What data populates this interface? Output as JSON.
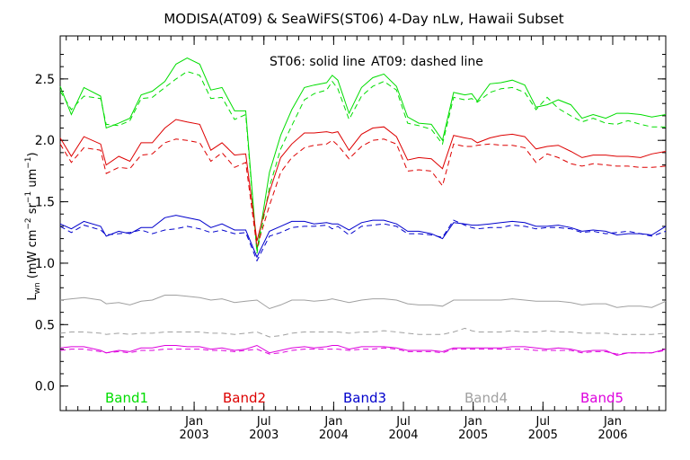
{
  "chart_data": {
    "type": "line",
    "title": "MODISA(AT09) & SeaWiFS(ST06) 4-Day nLw, Hawaii Subset",
    "annotation_solid": "ST06: solid line",
    "annotation_dashed": "AT09: dashed line",
    "ylabel": "L_wn (mW cm^-2 sr^-1 um^-1)",
    "ylabel_parts": {
      "main": "L",
      "sub": "wn",
      "units_a": " (mW cm",
      "exp_a": "−2",
      "units_b": " sr",
      "exp_b": "−1",
      "units_c": " um",
      "exp_c": "−1",
      "units_d": ")"
    },
    "xlim": [
      2002.04,
      2006.38
    ],
    "ylim": [
      -0.2,
      2.85
    ],
    "yticks": [
      "0.0",
      "0.5",
      "1.0",
      "1.5",
      "2.0",
      "2.5"
    ],
    "ytick_values": [
      0.0,
      0.5,
      1.0,
      1.5,
      2.0,
      2.5
    ],
    "xticks": [
      {
        "value": 2003.0,
        "month": "Jan",
        "year": "2003"
      },
      {
        "value": 2003.5,
        "month": "Jul",
        "year": "2003"
      },
      {
        "value": 2004.0,
        "month": "Jan",
        "year": "2004"
      },
      {
        "value": 2004.5,
        "month": "Jul",
        "year": "2004"
      },
      {
        "value": 2005.0,
        "month": "Jan",
        "year": "2005"
      },
      {
        "value": 2005.5,
        "month": "Jul",
        "year": "2005"
      },
      {
        "value": 2006.0,
        "month": "Jan",
        "year": "2006"
      }
    ],
    "x": [
      2002.04,
      2002.12,
      2002.21,
      2002.33,
      2002.37,
      2002.46,
      2002.54,
      2002.62,
      2002.7,
      2002.79,
      2002.87,
      2002.95,
      2003.04,
      2003.12,
      2003.2,
      2003.29,
      2003.37,
      2003.45,
      2003.54,
      2003.62,
      2003.7,
      2003.79,
      2003.86,
      2003.95,
      2003.99,
      2004.03,
      2004.11,
      2004.2,
      2004.28,
      2004.36,
      2004.45,
      2004.53,
      2004.61,
      2004.7,
      2004.78,
      2004.86,
      2004.94,
      2004.99,
      2005.03,
      2005.12,
      2005.2,
      2005.28,
      2005.37,
      2005.45,
      2005.53,
      2005.61,
      2005.7,
      2005.78,
      2005.86,
      2005.95,
      2006.03,
      2006.11,
      2006.2,
      2006.28,
      2006.38
    ],
    "legend": [
      "Band1",
      "Band2",
      "Band3",
      "Band4",
      "Band5"
    ],
    "series": [
      {
        "name": "Band1",
        "color": "#00dd00",
        "solid": [
          2.44,
          2.21,
          2.43,
          2.36,
          2.1,
          2.14,
          2.18,
          2.37,
          2.4,
          2.48,
          2.62,
          2.67,
          2.62,
          2.41,
          2.43,
          2.24,
          2.24,
          1.1,
          1.74,
          2.04,
          2.25,
          2.43,
          2.45,
          2.47,
          2.53,
          2.49,
          2.22,
          2.43,
          2.51,
          2.54,
          2.44,
          2.19,
          2.14,
          2.13,
          2.0,
          2.39,
          2.37,
          2.38,
          2.32,
          2.46,
          2.47,
          2.49,
          2.45,
          2.27,
          2.29,
          2.33,
          2.29,
          2.18,
          2.21,
          2.18,
          2.22,
          2.22,
          2.21,
          2.19,
          2.21
        ],
        "dashed": [
          2.4,
          2.25,
          2.36,
          2.34,
          2.13,
          2.12,
          2.16,
          2.34,
          2.35,
          2.43,
          2.5,
          2.56,
          2.53,
          2.34,
          2.35,
          2.17,
          2.21,
          1.08,
          1.62,
          1.93,
          2.12,
          2.33,
          2.38,
          2.41,
          2.48,
          2.42,
          2.17,
          2.36,
          2.44,
          2.48,
          2.41,
          2.14,
          2.12,
          2.09,
          1.97,
          2.35,
          2.33,
          2.34,
          2.31,
          2.39,
          2.42,
          2.43,
          2.39,
          2.25,
          2.35,
          2.26,
          2.2,
          2.15,
          2.18,
          2.14,
          2.13,
          2.16,
          2.13,
          2.11,
          2.11
        ]
      },
      {
        "name": "Band2",
        "color": "#dd0000",
        "solid": [
          2.02,
          1.87,
          2.03,
          1.97,
          1.8,
          1.87,
          1.83,
          1.98,
          1.98,
          2.1,
          2.17,
          2.15,
          2.13,
          1.92,
          1.98,
          1.88,
          1.89,
          1.18,
          1.58,
          1.86,
          1.97,
          2.06,
          2.06,
          2.07,
          2.06,
          2.07,
          1.92,
          2.05,
          2.1,
          2.11,
          2.03,
          1.84,
          1.86,
          1.85,
          1.77,
          2.04,
          2.02,
          2.01,
          1.98,
          2.02,
          2.04,
          2.05,
          2.03,
          1.93,
          1.95,
          1.96,
          1.91,
          1.86,
          1.88,
          1.88,
          1.87,
          1.87,
          1.86,
          1.89,
          1.91
        ],
        "dashed": [
          1.97,
          1.82,
          1.94,
          1.92,
          1.73,
          1.78,
          1.77,
          1.88,
          1.89,
          1.98,
          2.01,
          2.0,
          1.98,
          1.83,
          1.9,
          1.78,
          1.82,
          1.13,
          1.47,
          1.74,
          1.86,
          1.94,
          1.96,
          1.97,
          2.0,
          1.96,
          1.85,
          1.95,
          2.0,
          2.01,
          1.97,
          1.75,
          1.76,
          1.75,
          1.63,
          1.97,
          1.95,
          1.95,
          1.96,
          1.97,
          1.96,
          1.96,
          1.94,
          1.82,
          1.89,
          1.86,
          1.81,
          1.79,
          1.81,
          1.8,
          1.79,
          1.79,
          1.78,
          1.78,
          1.79
        ]
      },
      {
        "name": "Band3",
        "color": "#0000cc",
        "solid": [
          1.32,
          1.28,
          1.34,
          1.3,
          1.22,
          1.26,
          1.24,
          1.29,
          1.29,
          1.37,
          1.39,
          1.37,
          1.35,
          1.29,
          1.32,
          1.27,
          1.27,
          1.05,
          1.26,
          1.3,
          1.34,
          1.34,
          1.32,
          1.33,
          1.32,
          1.32,
          1.27,
          1.33,
          1.35,
          1.35,
          1.32,
          1.26,
          1.26,
          1.24,
          1.2,
          1.33,
          1.32,
          1.31,
          1.31,
          1.32,
          1.33,
          1.34,
          1.33,
          1.3,
          1.3,
          1.31,
          1.29,
          1.26,
          1.27,
          1.26,
          1.23,
          1.24,
          1.24,
          1.23,
          1.3
        ],
        "dashed": [
          1.3,
          1.25,
          1.31,
          1.27,
          1.23,
          1.24,
          1.25,
          1.27,
          1.24,
          1.27,
          1.28,
          1.3,
          1.28,
          1.25,
          1.27,
          1.24,
          1.25,
          1.02,
          1.22,
          1.25,
          1.29,
          1.3,
          1.3,
          1.31,
          1.28,
          1.3,
          1.23,
          1.3,
          1.31,
          1.32,
          1.3,
          1.24,
          1.24,
          1.23,
          1.21,
          1.35,
          1.31,
          1.29,
          1.28,
          1.29,
          1.29,
          1.31,
          1.3,
          1.28,
          1.29,
          1.29,
          1.28,
          1.25,
          1.26,
          1.24,
          1.25,
          1.26,
          1.24,
          1.22,
          1.26
        ]
      },
      {
        "name": "Band4",
        "color": "#a0a0a0",
        "solid": [
          0.7,
          0.71,
          0.72,
          0.7,
          0.67,
          0.68,
          0.66,
          0.69,
          0.7,
          0.74,
          0.74,
          0.73,
          0.72,
          0.7,
          0.71,
          0.68,
          0.69,
          0.7,
          0.63,
          0.66,
          0.7,
          0.7,
          0.69,
          0.7,
          0.71,
          0.7,
          0.68,
          0.7,
          0.71,
          0.71,
          0.7,
          0.67,
          0.66,
          0.66,
          0.65,
          0.7,
          0.7,
          0.7,
          0.7,
          0.7,
          0.7,
          0.71,
          0.7,
          0.69,
          0.69,
          0.69,
          0.68,
          0.66,
          0.67,
          0.67,
          0.64,
          0.65,
          0.65,
          0.64,
          0.69
        ],
        "dashed": [
          0.43,
          0.44,
          0.44,
          0.43,
          0.42,
          0.43,
          0.42,
          0.43,
          0.43,
          0.44,
          0.44,
          0.44,
          0.44,
          0.43,
          0.43,
          0.42,
          0.43,
          0.44,
          0.4,
          0.41,
          0.43,
          0.44,
          0.44,
          0.44,
          0.44,
          0.44,
          0.43,
          0.44,
          0.44,
          0.45,
          0.44,
          0.43,
          0.42,
          0.42,
          0.42,
          0.44,
          0.47,
          0.45,
          0.44,
          0.44,
          0.44,
          0.45,
          0.44,
          0.44,
          0.45,
          0.44,
          0.44,
          0.43,
          0.43,
          0.43,
          0.42,
          0.42,
          0.42,
          0.42,
          0.43
        ]
      },
      {
        "name": "Band5",
        "color": "#dd00dd",
        "solid": [
          0.31,
          0.32,
          0.32,
          0.29,
          0.27,
          0.29,
          0.28,
          0.31,
          0.31,
          0.33,
          0.33,
          0.32,
          0.32,
          0.3,
          0.31,
          0.29,
          0.3,
          0.33,
          0.27,
          0.29,
          0.31,
          0.32,
          0.31,
          0.32,
          0.33,
          0.33,
          0.3,
          0.32,
          0.32,
          0.32,
          0.31,
          0.29,
          0.29,
          0.29,
          0.28,
          0.31,
          0.31,
          0.31,
          0.31,
          0.31,
          0.31,
          0.32,
          0.32,
          0.31,
          0.3,
          0.31,
          0.3,
          0.28,
          0.29,
          0.29,
          0.25,
          0.27,
          0.27,
          0.27,
          0.3
        ],
        "dashed": [
          0.29,
          0.3,
          0.3,
          0.28,
          0.27,
          0.28,
          0.27,
          0.29,
          0.29,
          0.3,
          0.3,
          0.3,
          0.3,
          0.29,
          0.29,
          0.28,
          0.29,
          0.3,
          0.26,
          0.27,
          0.29,
          0.3,
          0.3,
          0.3,
          0.3,
          0.3,
          0.29,
          0.3,
          0.3,
          0.31,
          0.3,
          0.28,
          0.28,
          0.28,
          0.27,
          0.3,
          0.3,
          0.3,
          0.3,
          0.3,
          0.3,
          0.3,
          0.3,
          0.29,
          0.29,
          0.29,
          0.29,
          0.27,
          0.28,
          0.28,
          0.26,
          0.27,
          0.27,
          0.27,
          0.29
        ]
      }
    ],
    "grid": false,
    "legend_placement": "bottom-inside"
  }
}
